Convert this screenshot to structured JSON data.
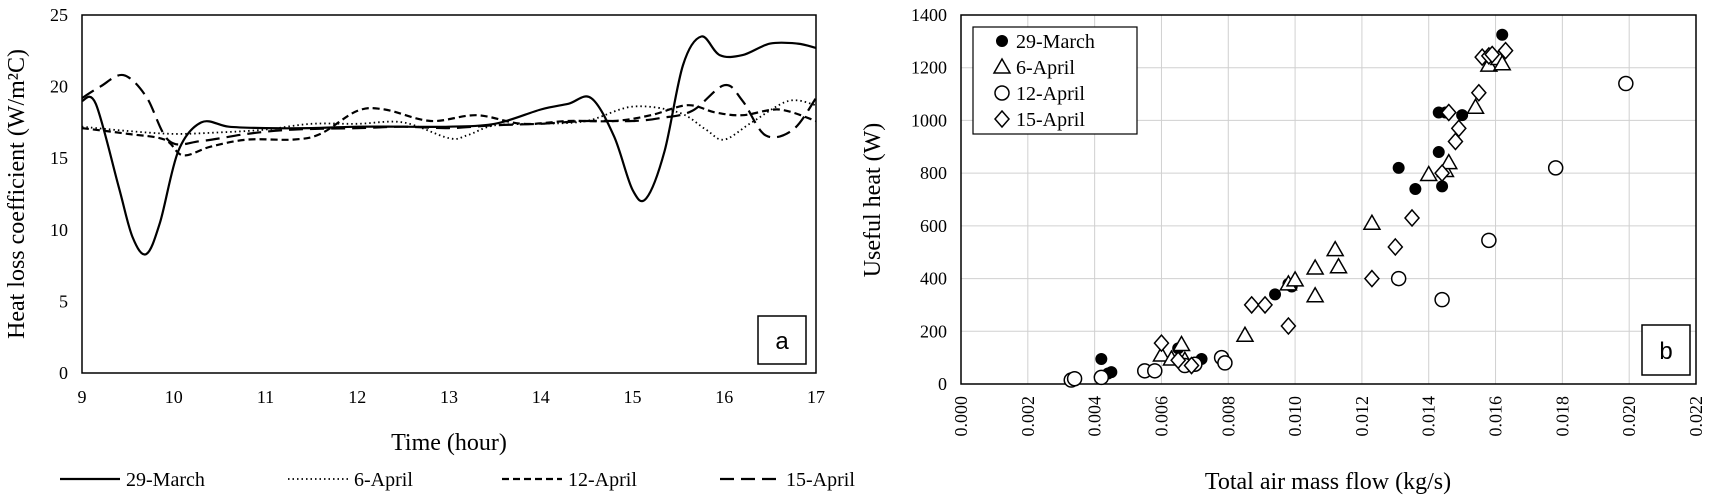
{
  "chart_data": [
    {
      "type": "line",
      "panel_label": "a",
      "xlabel": "Time (hour)",
      "ylabel": "Heat loss coefficient (W/m²C)",
      "xlim": [
        9,
        17
      ],
      "ylim": [
        0,
        25
      ],
      "xticks": [
        9,
        10,
        11,
        12,
        13,
        14,
        15,
        16,
        17
      ],
      "yticks": [
        0,
        5,
        10,
        15,
        20,
        25
      ],
      "grid": false,
      "legend_position": "bottom",
      "series": [
        {
          "name": "29-March",
          "style": "solid",
          "x": [
            9,
            9.15,
            9.4,
            9.55,
            9.7,
            9.85,
            10.05,
            10.3,
            10.6,
            11,
            11.5,
            12,
            12.5,
            13,
            13.5,
            14,
            14.3,
            14.55,
            14.8,
            15,
            15.15,
            15.35,
            15.55,
            15.75,
            15.95,
            16.2,
            16.5,
            16.8,
            17
          ],
          "y": [
            19,
            18.8,
            13,
            9.5,
            8.3,
            10.5,
            15.5,
            17.5,
            17.2,
            17.1,
            17.1,
            17.2,
            17.2,
            17.2,
            17.4,
            18.4,
            18.8,
            19.2,
            16.5,
            12.8,
            12.2,
            15.5,
            21.5,
            23.5,
            22.2,
            22.2,
            23,
            23,
            22.7
          ]
        },
        {
          "name": "6-April",
          "style": "dotted",
          "x": [
            9,
            9.5,
            10,
            10.5,
            11,
            11.5,
            12,
            12.5,
            13,
            13.2,
            13.5,
            14,
            14.5,
            15,
            15.5,
            15.8,
            16,
            16.3,
            16.7,
            17
          ],
          "y": [
            17.2,
            16.9,
            16.7,
            16.8,
            17,
            17.4,
            17.4,
            17.5,
            16.4,
            16.6,
            17.3,
            17.4,
            17.6,
            18.6,
            18.2,
            17,
            16.3,
            17.5,
            19,
            18.7
          ]
        },
        {
          "name": "12-April",
          "style": "dashed",
          "x": [
            9,
            9.5,
            9.9,
            10.1,
            10.4,
            10.8,
            11.3,
            11.6,
            12,
            12.3,
            12.8,
            13.3,
            13.8,
            14.3,
            14.8,
            15.2,
            15.6,
            15.9,
            16.2,
            16.6,
            17
          ],
          "y": [
            17.1,
            16.7,
            16.3,
            15.2,
            15.8,
            16.3,
            16.3,
            16.7,
            18.3,
            18.4,
            17.6,
            18,
            17.4,
            17.6,
            17.6,
            18,
            18.7,
            18.2,
            18,
            18.4,
            17.6
          ]
        },
        {
          "name": "15-April",
          "style": "longdash",
          "x": [
            9,
            9.2,
            9.45,
            9.7,
            9.95,
            10.3,
            10.8,
            11.3,
            12,
            12.5,
            13,
            13.5,
            14,
            14.5,
            15,
            15.3,
            15.65,
            16,
            16.2,
            16.45,
            16.75,
            17
          ],
          "y": [
            19.2,
            20,
            20.8,
            19.3,
            16.2,
            16.2,
            16.7,
            17,
            17.1,
            17.2,
            17.1,
            17.3,
            17.4,
            17.6,
            17.6,
            17.8,
            18.3,
            20.1,
            19,
            16.6,
            17,
            19.2
          ]
        }
      ]
    },
    {
      "type": "scatter",
      "panel_label": "b",
      "xlabel": "Total air mass flow (kg/s)",
      "ylabel": "Useful heat (W)",
      "xlim": [
        0,
        0.022
      ],
      "ylim": [
        0,
        1400
      ],
      "xticks": [
        "0.000",
        "0.002",
        "0.004",
        "0.006",
        "0.008",
        "0.010",
        "0.012",
        "0.014",
        "0.016",
        "0.018",
        "0.020",
        "0.022"
      ],
      "yticks": [
        0,
        200,
        400,
        600,
        800,
        1000,
        1200,
        1400
      ],
      "grid": true,
      "legend_position": "top-left",
      "series": [
        {
          "name": "29-March",
          "marker": "filled-circle",
          "x": [
            0.0042,
            0.0044,
            0.0045,
            0.0065,
            0.0067,
            0.0072,
            0.0094,
            0.0098,
            0.0099,
            0.0131,
            0.0136,
            0.0143,
            0.0143,
            0.0144,
            0.0145,
            0.015,
            0.0162
          ],
          "y": [
            95,
            40,
            45,
            135,
            80,
            95,
            340,
            380,
            370,
            820,
            740,
            1030,
            880,
            750,
            1030,
            1020,
            1325
          ]
        },
        {
          "name": "6-April",
          "marker": "open-triangle",
          "x": [
            0.006,
            0.0063,
            0.0066,
            0.0067,
            0.0085,
            0.0098,
            0.01,
            0.0106,
            0.0106,
            0.0112,
            0.0113,
            0.0123,
            0.014,
            0.0145,
            0.0146,
            0.0154,
            0.0158,
            0.0161,
            0.0162
          ],
          "y": [
            110,
            95,
            150,
            90,
            185,
            380,
            395,
            440,
            335,
            510,
            445,
            610,
            795,
            810,
            840,
            1050,
            1210,
            1235,
            1215
          ]
        },
        {
          "name": "12-April",
          "marker": "open-circle",
          "x": [
            0.0033,
            0.0034,
            0.0042,
            0.0055,
            0.0058,
            0.0067,
            0.007,
            0.0078,
            0.0079,
            0.0131,
            0.0144,
            0.0158,
            0.0178,
            0.0199
          ],
          "y": [
            15,
            20,
            25,
            50,
            50,
            70,
            75,
            100,
            80,
            400,
            320,
            545,
            820,
            1140
          ]
        },
        {
          "name": "15-April",
          "marker": "open-diamond",
          "x": [
            0.006,
            0.0065,
            0.0069,
            0.0087,
            0.0091,
            0.0098,
            0.0123,
            0.013,
            0.0135,
            0.0144,
            0.0146,
            0.0148,
            0.0149,
            0.0155,
            0.0156,
            0.0158,
            0.0159,
            0.0163
          ],
          "y": [
            155,
            90,
            70,
            300,
            300,
            220,
            400,
            520,
            630,
            800,
            1030,
            920,
            970,
            1105,
            1240,
            1245,
            1250,
            1265
          ]
        }
      ]
    }
  ]
}
